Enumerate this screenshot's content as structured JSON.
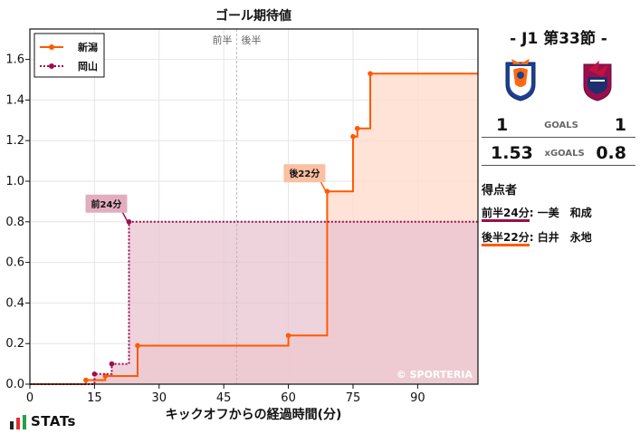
{
  "chart_data": {
    "type": "line",
    "step": true,
    "title": "ゴール期待値",
    "xlabel": "キックオフからの経過時間(分)",
    "ylabel": "",
    "xlim": [
      0,
      104
    ],
    "ylim": [
      0,
      1.75
    ],
    "xticks": [
      0,
      15,
      30,
      45,
      60,
      75,
      90
    ],
    "yticks": [
      0.0,
      0.2,
      0.4,
      0.6,
      0.8,
      1.0,
      1.2,
      1.4,
      1.6
    ],
    "grid": true,
    "legend_position": "top-left",
    "half_marker": {
      "x": 48,
      "labels": [
        "前半",
        "後半"
      ]
    },
    "series": [
      {
        "name": "新潟",
        "color": "#ff5a00",
        "fill": "#ffd9c8",
        "style": "solid",
        "points": [
          [
            13,
            0.02
          ],
          [
            17.5,
            0.04
          ],
          [
            25,
            0.19
          ],
          [
            60,
            0.24
          ],
          [
            69,
            0.95
          ],
          [
            75,
            1.22
          ],
          [
            76,
            1.26
          ],
          [
            79,
            1.53
          ]
        ]
      },
      {
        "name": "岡山",
        "color": "#9b0e4e",
        "fill": "#e8c3d0",
        "style": "dotted",
        "points": [
          [
            15,
            0.05
          ],
          [
            19,
            0.1
          ],
          [
            23,
            0.8
          ]
        ]
      }
    ],
    "annotations": [
      {
        "text": "前24分",
        "x": 23,
        "y": 0.8,
        "series": "岡山",
        "color": "#e2aebf"
      },
      {
        "text": "後22分",
        "x": 69,
        "y": 0.95,
        "series": "新潟",
        "color": "#fbbfa2"
      }
    ],
    "watermark": "© SPORTERIA"
  },
  "match": {
    "title": "- J1 第33節 -",
    "home_crest": "albirex-niigata-crest-icon",
    "away_crest": "fagiano-okayama-crest-icon",
    "home_goals": "1",
    "away_goals": "1",
    "goals_label": "GOALS",
    "home_xg": "1.53",
    "away_xg": "0.8",
    "xg_label": "xGOALS"
  },
  "scorers": {
    "title": "得点者",
    "items": [
      {
        "time": "前半24分",
        "name": "一美　和成",
        "team": "away"
      },
      {
        "time": "後半22分",
        "name": "白井　永地",
        "team": "home"
      }
    ]
  },
  "brand": {
    "text": "STATs",
    "bar_colors": [
      "#222222",
      "#e03030",
      "#2a9d4a"
    ]
  }
}
